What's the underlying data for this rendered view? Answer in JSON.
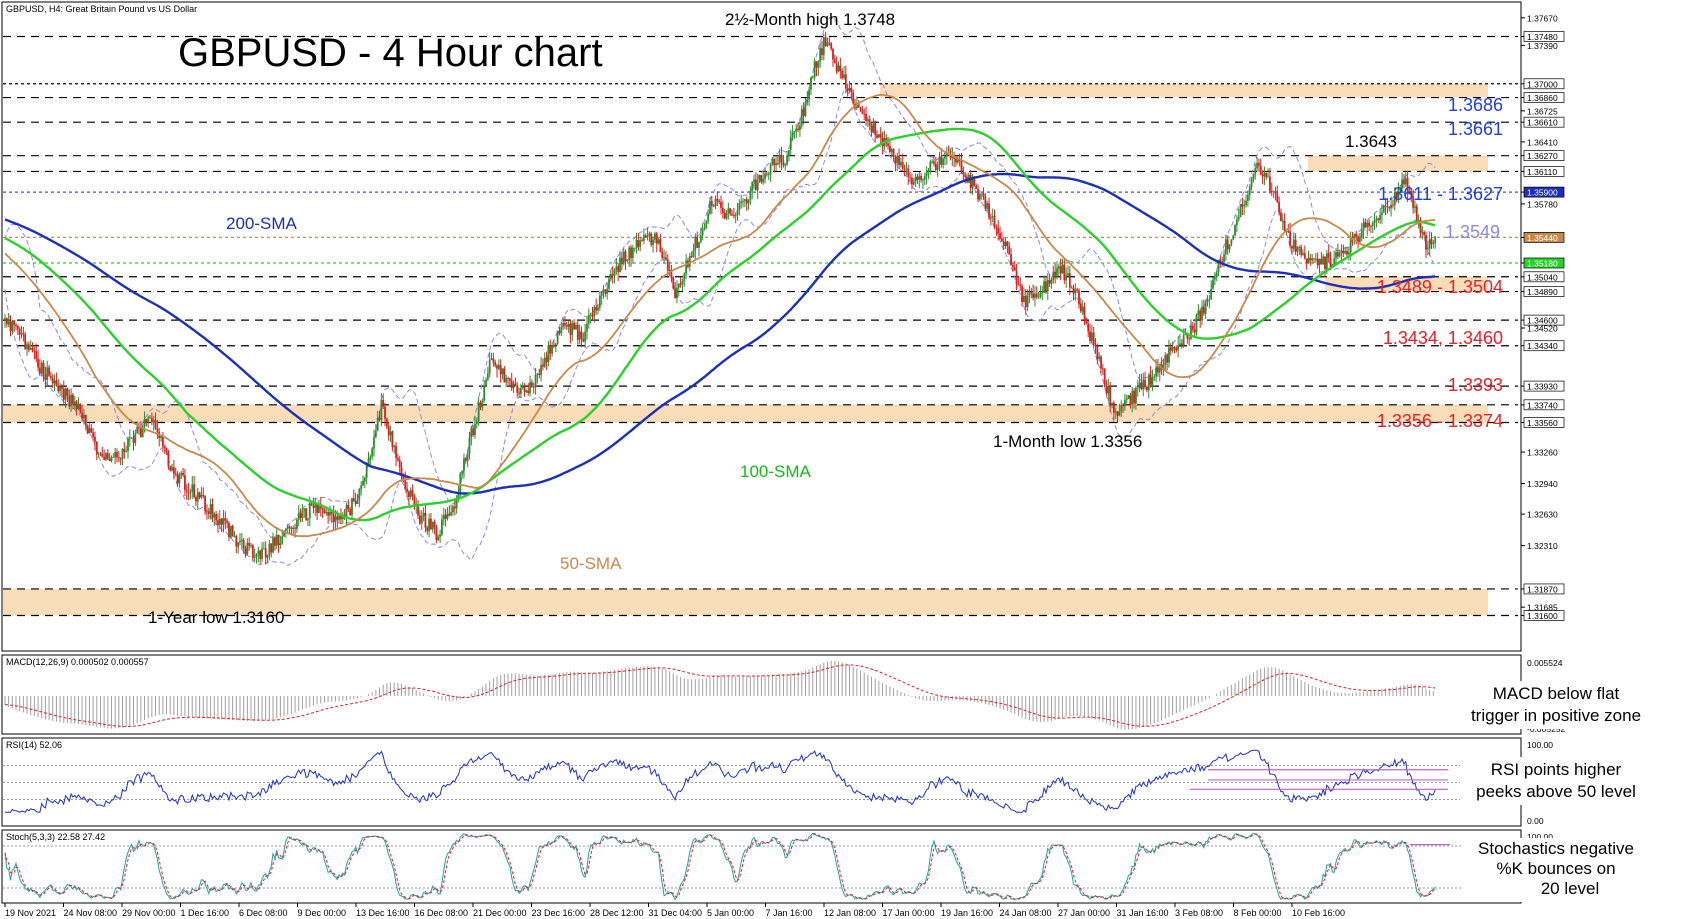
{
  "header": {
    "symbol_label": "GBPUSD, H4:  Great Britain Pound vs US Dollar",
    "title": "GBPUSD - 4 Hour chart"
  },
  "colors": {
    "candle_up": "#2e8b2e",
    "candle_down": "#d62020",
    "sma200": "#1c2fb8",
    "sma100": "#2ad12a",
    "sma50": "#c8894a",
    "bollinger": "#8a8ae0",
    "zone_fill": "#f8ddb8",
    "support_text": "#e8202a",
    "resistance_text": "#1f3fd8",
    "macd_signal": "#e02020",
    "rsi_line": "#2030c0",
    "stoch_k": "#20a0a8",
    "stoch_d": "#e02020",
    "trend_line": "#c060d0"
  },
  "chart_data": [
    {
      "type": "candlestick",
      "panel": "price",
      "ylim": [
        1.3125,
        1.378
      ],
      "price_axis_ticks": [
        "1.37670",
        "1.37480",
        "1.37390",
        "1.37000",
        "1.36860",
        "1.36725",
        "1.36610",
        "1.36410",
        "1.36270",
        "1.36110",
        "1.35900",
        "1.35780",
        "1.35440",
        "1.35180",
        "1.35040",
        "1.34890",
        "1.34600",
        "1.34520",
        "1.34340",
        "1.33930",
        "1.33740",
        "1.33560",
        "1.33260",
        "1.32940",
        "1.32630",
        "1.32310",
        "1.31870",
        "1.31685",
        "1.31600"
      ],
      "x_axis_labels": [
        "19 Nov 2021",
        "24 Nov 08:00",
        "29 Nov 00:00",
        "1 Dec 16:00",
        "6 Dec 08:00",
        "9 Dec 00:00",
        "13 Dec 16:00",
        "16 Dec 08:00",
        "21 Dec 00:00",
        "23 Dec 16:00",
        "28 Dec 12:00",
        "31 Dec 04:00",
        "5 Jan 00:00",
        "7 Jan 16:00",
        "12 Jan 08:00",
        "17 Jan 00:00",
        "19 Jan 16:00",
        "24 Jan 08:00",
        "27 Jan 00:00",
        "31 Jan 16:00",
        "3 Feb 08:00",
        "8 Feb 00:00",
        "10 Feb 16:00"
      ],
      "close_path": [
        [
          0,
          1.346
        ],
        [
          10,
          1.344
        ],
        [
          20,
          1.341
        ],
        [
          30,
          1.339
        ],
        [
          40,
          1.337
        ],
        [
          50,
          1.333
        ],
        [
          60,
          1.332
        ],
        [
          70,
          1.334
        ],
        [
          80,
          1.336
        ],
        [
          90,
          1.331
        ],
        [
          100,
          1.329
        ],
        [
          110,
          1.327
        ],
        [
          120,
          1.325
        ],
        [
          130,
          1.323
        ],
        [
          140,
          1.322
        ],
        [
          150,
          1.324
        ],
        [
          160,
          1.326
        ],
        [
          170,
          1.327
        ],
        [
          180,
          1.3255
        ],
        [
          188,
          1.3268
        ],
        [
          197,
          1.3305
        ],
        [
          205,
          1.3372
        ],
        [
          215,
          1.331
        ],
        [
          225,
          1.3262
        ],
        [
          235,
          1.3244
        ],
        [
          245,
          1.3275
        ],
        [
          255,
          1.335
        ],
        [
          265,
          1.342
        ],
        [
          275,
          1.3395
        ],
        [
          285,
          1.3388
        ],
        [
          295,
          1.3425
        ],
        [
          305,
          1.3455
        ],
        [
          315,
          1.3445
        ],
        [
          325,
          1.3488
        ],
        [
          335,
          1.3518
        ],
        [
          345,
          1.3538
        ],
        [
          355,
          1.3545
        ],
        [
          365,
          1.3488
        ],
        [
          375,
          1.3532
        ],
        [
          385,
          1.3578
        ],
        [
          395,
          1.3568
        ],
        [
          405,
          1.3588
        ],
        [
          415,
          1.3612
        ],
        [
          425,
          1.3625
        ],
        [
          435,
          1.3672
        ],
        [
          441,
          1.3715
        ],
        [
          447,
          1.3745
        ],
        [
          453,
          1.3718
        ],
        [
          461,
          1.3686
        ],
        [
          469,
          1.3664
        ],
        [
          477,
          1.3645
        ],
        [
          485,
          1.3622
        ],
        [
          495,
          1.3598
        ],
        [
          505,
          1.3615
        ],
        [
          515,
          1.3628
        ],
        [
          525,
          1.3602
        ],
        [
          535,
          1.3575
        ],
        [
          545,
          1.3535
        ],
        [
          555,
          1.3478
        ],
        [
          565,
          1.3492
        ],
        [
          575,
          1.3512
        ],
        [
          585,
          1.3482
        ],
        [
          595,
          1.3422
        ],
        [
          605,
          1.3363
        ],
        [
          615,
          1.3383
        ],
        [
          625,
          1.3402
        ],
        [
          635,
          1.3428
        ],
        [
          645,
          1.3444
        ],
        [
          655,
          1.3482
        ],
        [
          665,
          1.3534
        ],
        [
          675,
          1.3579
        ],
        [
          682,
          1.3615
        ],
        [
          690,
          1.3594
        ],
        [
          698,
          1.3545
        ],
        [
          708,
          1.3524
        ],
        [
          718,
          1.3518
        ],
        [
          728,
          1.3528
        ],
        [
          738,
          1.3547
        ],
        [
          748,
          1.3567
        ],
        [
          755,
          1.3578
        ],
        [
          762,
          1.3605
        ],
        [
          768,
          1.3572
        ],
        [
          774,
          1.3533
        ],
        [
          780,
          1.3549
        ]
      ],
      "candle_count": 780
    },
    {
      "type": "line",
      "panel": "macd",
      "label": "MACD(12,26,9) 0.000502 0.000557",
      "ylim": [
        -0.005252,
        0.005524
      ],
      "axis_ticks": [
        "0.005524",
        "0.000000",
        "-0.005252"
      ]
    },
    {
      "type": "line",
      "panel": "rsi",
      "label": "RSI(14) 52.06",
      "ylim": [
        0,
        100
      ],
      "axis_ticks": [
        "100.00",
        "70.00",
        "50.00",
        "30.00",
        "0.00"
      ]
    },
    {
      "type": "line",
      "panel": "stoch",
      "label": "Stoch(5,3,3) 22.58 27.42",
      "ylim": [
        0,
        100
      ],
      "axis_ticks": [
        "100.00",
        "80.00",
        "20.00",
        "0.00"
      ]
    }
  ],
  "annotations": {
    "two_month_high": "2½-Month high 1.3748",
    "one_month_low": "1-Month low 1.3356",
    "one_year_low": "1-Year low 1.3160",
    "peak_1643": "1.3643",
    "sma200": "200-SMA",
    "sma100": "100-SMA",
    "sma50": "50-SMA",
    "levels": {
      "l1686": "1.3686",
      "l1661": "1.3661",
      "l1611": "1.3611 - 1.3627",
      "l1549": "1.3549",
      "l1489": "1.3489 - 1.3504",
      "l1434": "1.3434, 1.3460",
      "l1393": "1.3393",
      "l1356": "1.3356 - 1.3374"
    },
    "macd_note_1": "MACD below flat",
    "macd_note_2": "trigger in positive zone",
    "rsi_note_1": "RSI points higher",
    "rsi_note_2": "peeks above 50 level",
    "stoch_note_1": "Stochastics negative",
    "stoch_note_2": "%K bounces on",
    "stoch_note_3": "20 level"
  }
}
